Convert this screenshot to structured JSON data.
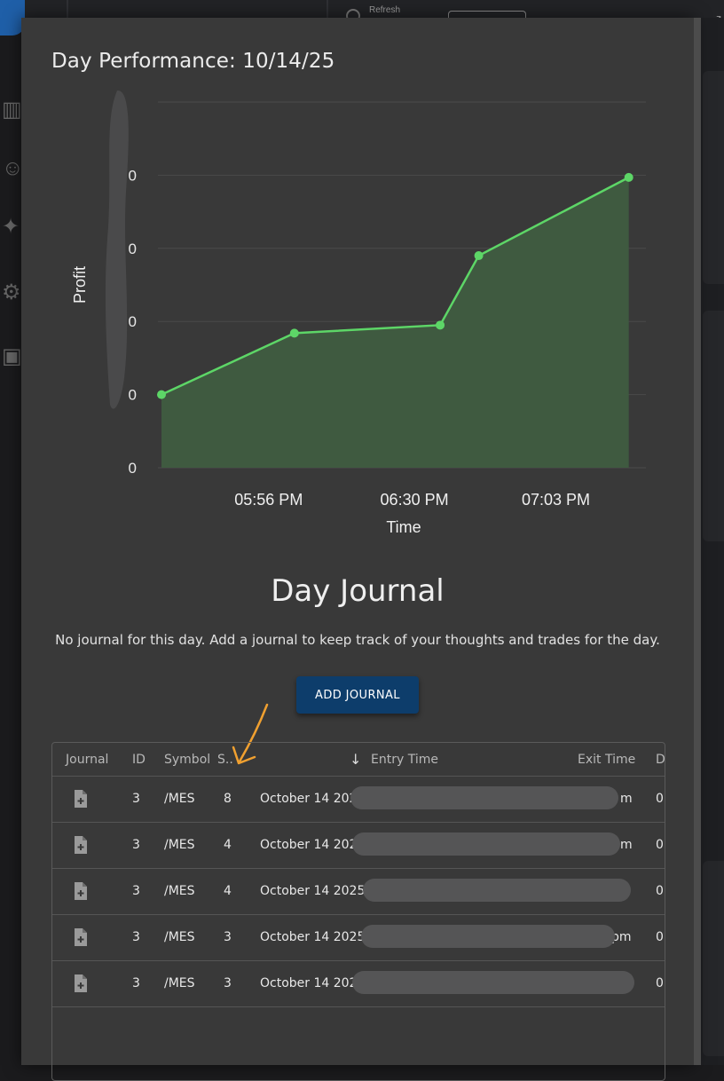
{
  "background_app": {
    "refresh_label": "Refresh"
  },
  "modal": {
    "title": "Day Performance: 10/14/25"
  },
  "chart_data": {
    "type": "area",
    "title": "Day Performance: 10/14/25",
    "xlabel": "Time",
    "ylabel": "Profit",
    "x_tick_labels": [
      "05:56 PM",
      "06:30 PM",
      "07:03 PM"
    ],
    "y_tick_labels": [
      "0",
      "0",
      "0",
      "0",
      "0"
    ],
    "x_minutes_range": [
      5,
      118
    ],
    "x_tick_minutes": [
      30,
      64,
      97
    ],
    "ylim": [
      0,
      5
    ],
    "points": [
      {
        "x": 5,
        "y": 1.0
      },
      {
        "x": 36,
        "y": 1.84
      },
      {
        "x": 70,
        "y": 1.95
      },
      {
        "x": 79,
        "y": 2.9
      },
      {
        "x": 114,
        "y": 3.97
      }
    ],
    "line_color": "#5dd667",
    "fill_color": "#3f5a40",
    "grid": true
  },
  "journal": {
    "title": "Day Journal",
    "description": "No journal for this day. Add a journal to keep track of your thoughts and trades for the day.",
    "add_button_label": "ADD JOURNAL"
  },
  "table": {
    "headers": {
      "journal": "Journal",
      "id": "ID",
      "symbol": "Symbol",
      "size": "S..",
      "entry_time": "Entry Time",
      "exit_time": "Exit Time",
      "extra": "D"
    },
    "rows": [
      {
        "id": "3",
        "symbol": "/MES",
        "size": "8",
        "entry": "October 14 2025",
        "exit_tail": "m",
        "extra": "0("
      },
      {
        "id": "3",
        "symbol": "/MES",
        "size": "4",
        "entry": "October 14 2025",
        "exit_tail": "m",
        "extra": "0("
      },
      {
        "id": "3",
        "symbol": "/MES",
        "size": "4",
        "entry": "October 14 2025 @",
        "exit_tail": "",
        "extra": "0("
      },
      {
        "id": "3",
        "symbol": "/MES",
        "size": "3",
        "entry": "October 14 2025 (",
        "exit_tail": "pm",
        "extra": "0("
      },
      {
        "id": "3",
        "symbol": "/MES",
        "size": "3",
        "entry": "October 14 2025",
        "exit_tail": "",
        "extra": "0("
      }
    ]
  },
  "colors": {
    "modal_bg": "#393939",
    "button_bg": "#0d3d6b",
    "annotation_arrow": "#f0a030"
  }
}
